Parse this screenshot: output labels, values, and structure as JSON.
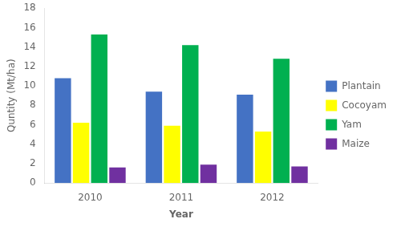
{
  "chart_data": {
    "type": "bar",
    "categories": [
      "2010",
      "2011",
      "2012"
    ],
    "series": [
      {
        "name": "Plantain",
        "color": "#4472C4",
        "values": [
          10.8,
          9.4,
          9.1
        ]
      },
      {
        "name": "Cocoyam",
        "color": "#FFFF00",
        "values": [
          6.2,
          5.9,
          5.3
        ]
      },
      {
        "name": "Yam",
        "color": "#00B050",
        "values": [
          15.3,
          14.2,
          12.8
        ]
      },
      {
        "name": "Maize",
        "color": "#7030A0",
        "values": [
          1.6,
          1.9,
          1.7
        ]
      }
    ],
    "xlabel": "Year",
    "ylabel": "Quntity (Mt/ha)",
    "ylim": [
      0,
      18
    ],
    "yticks": [
      0,
      2,
      4,
      6,
      8,
      10,
      12,
      14,
      16,
      18
    ],
    "grid": false,
    "legend": "right"
  }
}
